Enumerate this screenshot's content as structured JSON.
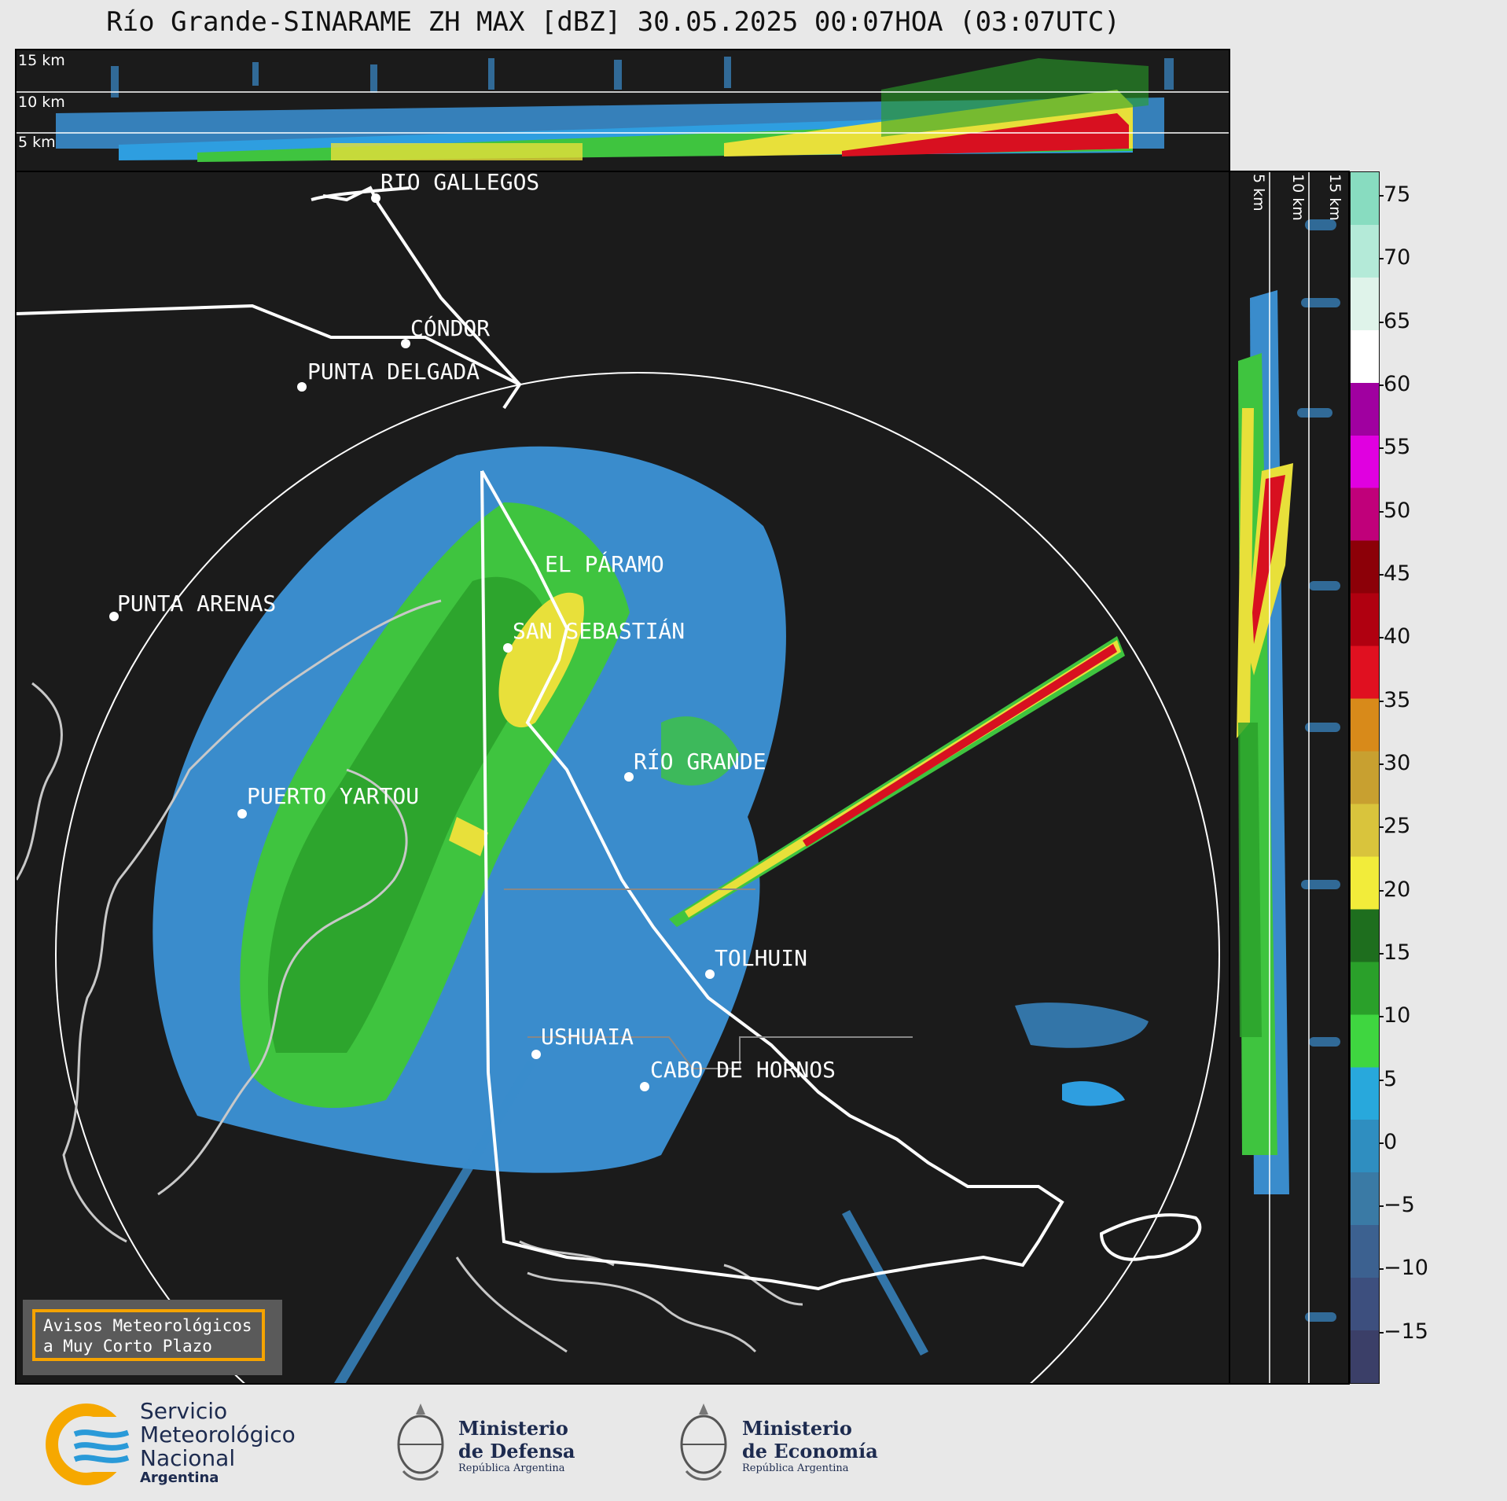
{
  "title": "Río Grande-SINARAME ZH MAX [dBZ] 30.05.2025 00:07HOA (03:07UTC)",
  "top_panel": {
    "altitude_labels": [
      "15 km",
      "10 km",
      "5 km"
    ]
  },
  "side_panel": {
    "altitude_labels": [
      "5 km",
      "10 km",
      "15 km"
    ]
  },
  "cities": [
    {
      "name": "RÍO GALLEGOS"
    },
    {
      "name": "CÓNDOR"
    },
    {
      "name": "PUNTA DELGADA"
    },
    {
      "name": "EL PÁRAMO"
    },
    {
      "name": "PUNTA ARENAS"
    },
    {
      "name": "SAN SEBASTIÁN"
    },
    {
      "name": "RÍO GRANDE"
    },
    {
      "name": "PUERTO YARTOU"
    },
    {
      "name": "TOLHUIN"
    },
    {
      "name": "USHUAIA"
    },
    {
      "name": "CABO DE HORNOS"
    }
  ],
  "warning": {
    "line1": "Avisos Meteorológicos",
    "line2": "a Muy Corto Plazo"
  },
  "colorbar": {
    "unit": "dBZ",
    "ticks": [
      "75",
      "70",
      "65",
      "60",
      "55",
      "50",
      "45",
      "40",
      "35",
      "30",
      "25",
      "20",
      "15",
      "10",
      "5",
      "0",
      "−5",
      "−10",
      "−15"
    ],
    "colors": [
      "#3b3f68",
      "#3d4f7e",
      "#3c6190",
      "#3a7aa5",
      "#2f8ec0",
      "#28a8dc",
      "#3fd640",
      "#2aa02a",
      "#1e6e1e",
      "#f2ec3a",
      "#d9c43c",
      "#c8a030",
      "#d88a1a",
      "#e01020",
      "#b00010",
      "#8c0008",
      "#c0007a",
      "#e000e0",
      "#a000a0",
      "#ffffff",
      "#dff3ea",
      "#b4ead8",
      "#88dcc0"
    ]
  },
  "logos": {
    "smn": {
      "line1": "Servicio",
      "line2": "Meteorológico",
      "line3": "Nacional",
      "line4": "Argentina"
    },
    "defensa": {
      "line1": "Ministerio",
      "line2": "de Defensa",
      "line3": "República Argentina"
    },
    "economia": {
      "line1": "Ministerio",
      "line2": "de Economía",
      "line3": "República Argentina"
    }
  }
}
